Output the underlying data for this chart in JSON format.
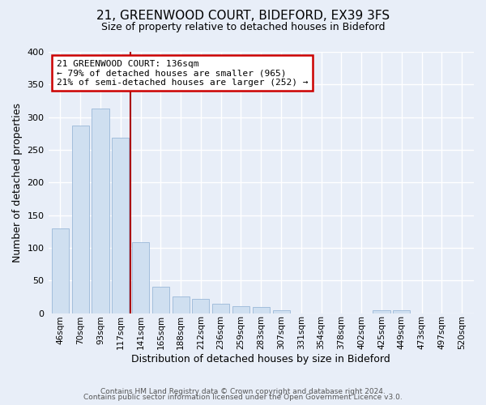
{
  "title": "21, GREENWOOD COURT, BIDEFORD, EX39 3FS",
  "subtitle": "Size of property relative to detached houses in Bideford",
  "xlabel": "Distribution of detached houses by size in Bideford",
  "ylabel": "Number of detached properties",
  "footer_line1": "Contains HM Land Registry data © Crown copyright and database right 2024.",
  "footer_line2": "Contains public sector information licensed under the Open Government Licence v3.0.",
  "bar_labels": [
    "46sqm",
    "70sqm",
    "93sqm",
    "117sqm",
    "141sqm",
    "165sqm",
    "188sqm",
    "212sqm",
    "236sqm",
    "259sqm",
    "283sqm",
    "307sqm",
    "331sqm",
    "354sqm",
    "378sqm",
    "402sqm",
    "425sqm",
    "449sqm",
    "473sqm",
    "497sqm",
    "520sqm"
  ],
  "bar_values": [
    130,
    287,
    313,
    269,
    109,
    40,
    25,
    22,
    14,
    11,
    9,
    5,
    0,
    0,
    0,
    0,
    4,
    5,
    0,
    0,
    0
  ],
  "bar_color": "#cfdff0",
  "bar_edgecolor": "#9ab8d8",
  "vline_x": 3.5,
  "vline_color": "#aa0000",
  "annotation_text": "21 GREENWOOD COURT: 136sqm\n← 79% of detached houses are smaller (965)\n21% of semi-detached houses are larger (252) →",
  "annotation_box_edgecolor": "#cc0000",
  "annotation_box_facecolor": "#ffffff",
  "ylim": [
    0,
    400
  ],
  "yticks": [
    0,
    50,
    100,
    150,
    200,
    250,
    300,
    350,
    400
  ],
  "figsize": [
    6.0,
    5.0
  ],
  "dpi": 100,
  "background_color": "#e8eef8"
}
